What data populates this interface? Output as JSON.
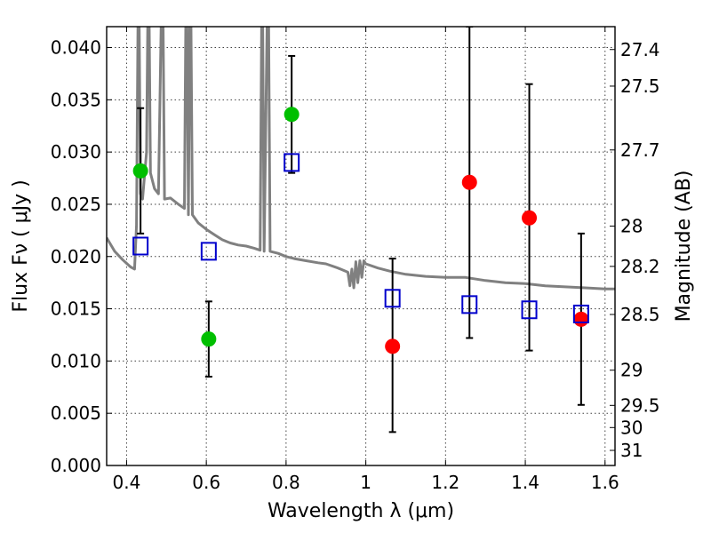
{
  "chart_data": {
    "type": "scatter",
    "title": "",
    "xlabel": "Wavelength  λ (μm)",
    "ylabel": "Flux  Fν  ( μJy )",
    "ylabel_right": "Magnitude (AB)",
    "xlim": [
      0.35,
      1.625
    ],
    "ylim": [
      0.0,
      0.042
    ],
    "grid": true,
    "x_ticks": [
      0.4,
      0.6,
      0.8,
      1.0,
      1.2,
      1.4,
      1.6
    ],
    "x_tick_labels": [
      "0.4",
      "0.6",
      "0.8",
      "1",
      "1.2",
      "1.4",
      "1.6"
    ],
    "y_ticks": [
      0.0,
      0.005,
      0.01,
      0.015,
      0.02,
      0.025,
      0.03,
      0.035,
      0.04
    ],
    "y_tick_labels": [
      "0.000",
      "0.005",
      "0.010",
      "0.015",
      "0.020",
      "0.025",
      "0.030",
      "0.035",
      "0.040"
    ],
    "right_ticks": [
      {
        "label": "27.4",
        "mag": 27.4
      },
      {
        "label": "27.5",
        "mag": 27.5
      },
      {
        "label": "27.7",
        "mag": 27.7
      },
      {
        "label": "28",
        "mag": 28.0
      },
      {
        "label": "28.2",
        "mag": 28.2
      },
      {
        "label": "28.5",
        "mag": 28.5
      },
      {
        "label": "29",
        "mag": 29.0
      },
      {
        "label": "29.5",
        "mag": 29.5
      },
      {
        "label": "30",
        "mag": 30.0
      },
      {
        "label": "31",
        "mag": 31.0
      }
    ],
    "series": [
      {
        "marker": "circle",
        "color": "#00bf00",
        "points": [
          {
            "x": 0.435,
            "y": 0.0282,
            "ylo": 0.0222,
            "yhi": 0.0342
          },
          {
            "x": 0.606,
            "y": 0.0121,
            "ylo": 0.0085,
            "yhi": 0.0157
          },
          {
            "x": 0.814,
            "y": 0.0336,
            "ylo": 0.028,
            "yhi": 0.0392
          }
        ]
      },
      {
        "marker": "circle",
        "color": "#ff0000",
        "points": [
          {
            "x": 1.067,
            "y": 0.0114,
            "ylo": 0.0032,
            "yhi": 0.0198
          },
          {
            "x": 1.26,
            "y": 0.0271,
            "ylo": 0.0122,
            "yhi": 0.042
          },
          {
            "x": 1.41,
            "y": 0.0237,
            "ylo": 0.011,
            "yhi": 0.0365
          },
          {
            "x": 1.54,
            "y": 0.014,
            "ylo": 0.0058,
            "yhi": 0.0222
          }
        ]
      },
      {
        "marker": "open-square",
        "color": "#0000cc",
        "points": [
          {
            "x": 0.435,
            "y": 0.021
          },
          {
            "x": 0.606,
            "y": 0.0205
          },
          {
            "x": 0.814,
            "y": 0.029
          },
          {
            "x": 1.067,
            "y": 0.016
          },
          {
            "x": 1.26,
            "y": 0.0154
          },
          {
            "x": 1.41,
            "y": 0.0149
          },
          {
            "x": 1.54,
            "y": 0.0145
          }
        ]
      }
    ],
    "model_spectrum": {
      "color": "#808080",
      "points": [
        [
          0.35,
          0.0218
        ],
        [
          0.37,
          0.0205
        ],
        [
          0.39,
          0.0197
        ],
        [
          0.41,
          0.019
        ],
        [
          0.42,
          0.0188
        ],
        [
          0.425,
          0.023
        ],
        [
          0.43,
          0.05
        ],
        [
          0.435,
          0.026
        ],
        [
          0.44,
          0.0255
        ],
        [
          0.45,
          0.03
        ],
        [
          0.455,
          0.05
        ],
        [
          0.46,
          0.028
        ],
        [
          0.47,
          0.0265
        ],
        [
          0.48,
          0.026
        ],
        [
          0.49,
          0.05
        ],
        [
          0.495,
          0.0255
        ],
        [
          0.51,
          0.0256
        ],
        [
          0.53,
          0.025
        ],
        [
          0.545,
          0.0246
        ],
        [
          0.55,
          0.05
        ],
        [
          0.555,
          0.024
        ],
        [
          0.56,
          0.05
        ],
        [
          0.565,
          0.024
        ],
        [
          0.58,
          0.0232
        ],
        [
          0.6,
          0.0226
        ],
        [
          0.62,
          0.0221
        ],
        [
          0.64,
          0.0216
        ],
        [
          0.66,
          0.0213
        ],
        [
          0.68,
          0.0211
        ],
        [
          0.7,
          0.021
        ],
        [
          0.72,
          0.0208
        ],
        [
          0.735,
          0.0206
        ],
        [
          0.74,
          0.05
        ],
        [
          0.745,
          0.0205
        ],
        [
          0.755,
          0.05
        ],
        [
          0.76,
          0.0205
        ],
        [
          0.78,
          0.0203
        ],
        [
          0.8,
          0.02
        ],
        [
          0.82,
          0.0198
        ],
        [
          0.85,
          0.0196
        ],
        [
          0.88,
          0.0194
        ],
        [
          0.9,
          0.0193
        ],
        [
          0.93,
          0.0189
        ],
        [
          0.955,
          0.0185
        ],
        [
          0.96,
          0.0172
        ],
        [
          0.965,
          0.0188
        ],
        [
          0.97,
          0.017
        ],
        [
          0.975,
          0.0195
        ],
        [
          0.98,
          0.0175
        ],
        [
          0.985,
          0.0196
        ],
        [
          0.99,
          0.018
        ],
        [
          0.995,
          0.0196
        ],
        [
          1.0,
          0.0193
        ],
        [
          1.03,
          0.0189
        ],
        [
          1.06,
          0.0186
        ],
        [
          1.1,
          0.0183
        ],
        [
          1.15,
          0.0181
        ],
        [
          1.2,
          0.018
        ],
        [
          1.25,
          0.018
        ],
        [
          1.3,
          0.0177
        ],
        [
          1.35,
          0.0175
        ],
        [
          1.4,
          0.0174
        ],
        [
          1.45,
          0.0172
        ],
        [
          1.5,
          0.0171
        ],
        [
          1.55,
          0.017
        ],
        [
          1.6,
          0.0169
        ],
        [
          1.625,
          0.0169
        ]
      ]
    }
  }
}
